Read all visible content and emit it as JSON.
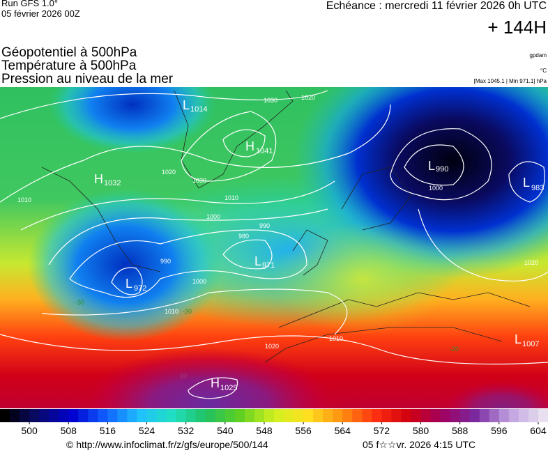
{
  "header": {
    "run": "Run GFS 1.0°",
    "run_date": "05 février 2026 00Z",
    "valid": "Echéance : mercredi 11 février 2026 0h UTC",
    "lead": "+ 144H",
    "titles": [
      "Géopotentiel à 500hPa",
      "Température à 500hPa",
      "Pression au niveau de la mer"
    ],
    "units": [
      "gpdam",
      "°C",
      "[Max 1045.1 | Min 971.1] hPa"
    ]
  },
  "map": {
    "centers": [
      {
        "type": "L",
        "value": "1014"
      },
      {
        "type": "H",
        "value": "1041"
      },
      {
        "type": "H",
        "value": "1032"
      },
      {
        "type": "L",
        "value": "990"
      },
      {
        "type": "L",
        "value": "983"
      },
      {
        "type": "L",
        "value": "971"
      },
      {
        "type": "L",
        "value": "972"
      },
      {
        "type": "H",
        "value": "1025"
      },
      {
        "type": "L",
        "value": "1007"
      }
    ],
    "isobar_labels": [
      "1020",
      "1030",
      "1010",
      "1000",
      "990",
      "980",
      "990",
      "1000",
      "1010",
      "1020",
      "1010",
      "1000",
      "1020",
      "1010",
      "1020",
      "1030"
    ],
    "temperature_labels": [
      "-30",
      "-20",
      "-10",
      "-20"
    ]
  },
  "colorbar": {
    "range": [
      494,
      606
    ],
    "step": 2,
    "ticks": [
      500,
      508,
      516,
      524,
      532,
      540,
      548,
      556,
      564,
      572,
      580,
      588,
      596,
      604
    ],
    "palette": [
      "#000000",
      "#0a0a6e",
      "#0000d0",
      "#1060ff",
      "#20c0ff",
      "#20e0c0",
      "#20c060",
      "#60d020",
      "#d0f020",
      "#ffe020",
      "#ff9010",
      "#ff3010",
      "#d00010",
      "#a00060",
      "#7a2aa0",
      "#c0a0e0",
      "#e8e0f0"
    ]
  },
  "footer": {
    "url": "© http://www.infoclimat.fr/z/gfs/europe/500/144",
    "stamp": "05 f☆☆vr. 2026  4:15 UTC"
  }
}
